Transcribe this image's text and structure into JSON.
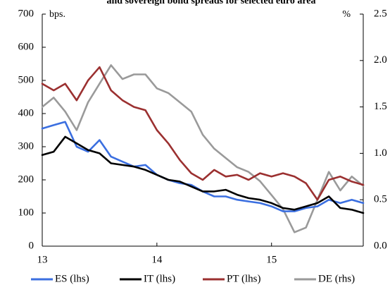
{
  "chart_data": {
    "type": "line",
    "title": "and sovereign bond spreads for selected euro area",
    "left_unit": "bps.",
    "right_unit": "%",
    "x_ticks": [
      {
        "value": 2013,
        "label": "13"
      },
      {
        "value": 2014,
        "label": "14"
      },
      {
        "value": 2015,
        "label": "15"
      }
    ],
    "xlim": [
      2013.0,
      2015.8
    ],
    "y_left": {
      "ylim": [
        0,
        700
      ],
      "ticks": [
        0,
        100,
        200,
        300,
        400,
        500,
        600,
        700
      ]
    },
    "y_right": {
      "ylim": [
        0.0,
        2.5
      ],
      "ticks": [
        "0.0",
        "0.5",
        "1.0",
        "1.5",
        "2.0",
        "2.5"
      ]
    },
    "grid": false,
    "legend_position": "bottom",
    "series": [
      {
        "name": "ES (lhs)",
        "axis": "left",
        "color": "#3b6fe0",
        "x": [
          2013.0,
          2013.1,
          2013.2,
          2013.3,
          2013.4,
          2013.5,
          2013.6,
          2013.7,
          2013.8,
          2013.9,
          2014.0,
          2014.1,
          2014.2,
          2014.3,
          2014.4,
          2014.5,
          2014.6,
          2014.7,
          2014.8,
          2014.9,
          2015.0,
          2015.1,
          2015.2,
          2015.3,
          2015.4,
          2015.5,
          2015.6,
          2015.7,
          2015.8
        ],
        "y": [
          355,
          365,
          375,
          300,
          285,
          320,
          270,
          255,
          240,
          245,
          215,
          200,
          190,
          185,
          165,
          150,
          150,
          140,
          135,
          130,
          120,
          105,
          105,
          115,
          120,
          140,
          130,
          140,
          130
        ]
      },
      {
        "name": "IT (lhs)",
        "axis": "left",
        "color": "#000000",
        "x": [
          2013.0,
          2013.1,
          2013.2,
          2013.3,
          2013.4,
          2013.5,
          2013.6,
          2013.7,
          2013.8,
          2013.9,
          2014.0,
          2014.1,
          2014.2,
          2014.3,
          2014.4,
          2014.5,
          2014.6,
          2014.7,
          2014.8,
          2014.9,
          2015.0,
          2015.1,
          2015.2,
          2015.3,
          2015.4,
          2015.5,
          2015.6,
          2015.7,
          2015.8
        ],
        "y": [
          275,
          285,
          330,
          310,
          290,
          280,
          250,
          245,
          240,
          230,
          215,
          200,
          195,
          180,
          165,
          165,
          170,
          155,
          145,
          140,
          130,
          115,
          110,
          120,
          130,
          150,
          115,
          110,
          100
        ]
      },
      {
        "name": "PT (lhs)",
        "axis": "left",
        "color": "#9b3030",
        "x": [
          2013.0,
          2013.1,
          2013.2,
          2013.3,
          2013.4,
          2013.5,
          2013.6,
          2013.7,
          2013.8,
          2013.9,
          2014.0,
          2014.1,
          2014.2,
          2014.3,
          2014.4,
          2014.5,
          2014.6,
          2014.7,
          2014.8,
          2014.9,
          2015.0,
          2015.1,
          2015.2,
          2015.3,
          2015.4,
          2015.5,
          2015.6,
          2015.7,
          2015.8
        ],
        "y": [
          490,
          470,
          490,
          440,
          500,
          540,
          470,
          440,
          420,
          410,
          350,
          310,
          260,
          220,
          200,
          230,
          210,
          215,
          200,
          220,
          210,
          220,
          210,
          190,
          140,
          200,
          210,
          195,
          185
        ]
      },
      {
        "name": "DE (rhs)",
        "axis": "right",
        "color": "#9a9a9a",
        "x": [
          2013.0,
          2013.1,
          2013.2,
          2013.3,
          2013.4,
          2013.5,
          2013.6,
          2013.7,
          2013.8,
          2013.9,
          2014.0,
          2014.1,
          2014.2,
          2014.3,
          2014.4,
          2014.5,
          2014.6,
          2014.7,
          2014.8,
          2014.9,
          2015.0,
          2015.1,
          2015.2,
          2015.3,
          2015.4,
          2015.5,
          2015.6,
          2015.7,
          2015.8
        ],
        "y": [
          1.5,
          1.6,
          1.45,
          1.25,
          1.55,
          1.75,
          1.95,
          1.8,
          1.85,
          1.85,
          1.7,
          1.65,
          1.55,
          1.45,
          1.2,
          1.05,
          0.95,
          0.85,
          0.8,
          0.7,
          0.55,
          0.4,
          0.15,
          0.2,
          0.5,
          0.8,
          0.6,
          0.75,
          0.65
        ]
      }
    ]
  }
}
